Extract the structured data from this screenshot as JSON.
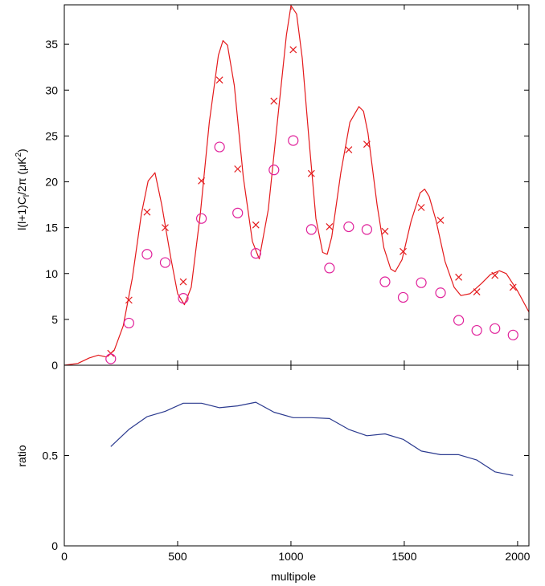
{
  "chart_data": [
    {
      "type": "line",
      "ylabel": "l(l+1)C_l/2π (μK²)",
      "ylabel_parts": {
        "a": "l(l+1)C",
        "sub": "l",
        "b": "/2π (μK",
        "sup": "2",
        "c": ")"
      },
      "xlim": [
        0,
        2050
      ],
      "ylim": [
        0,
        39.3
      ],
      "yticks": [
        0,
        5,
        10,
        15,
        20,
        25,
        30,
        35
      ],
      "grid": false,
      "series": [
        {
          "kind": "line",
          "color": "#e41a1c",
          "x": [
            0,
            60,
            110,
            150,
            185,
            220,
            260,
            300,
            340,
            370,
            400,
            430,
            470,
            500,
            530,
            560,
            600,
            640,
            680,
            700,
            720,
            750,
            790,
            830,
            860,
            900,
            940,
            980,
            1000,
            1025,
            1050,
            1080,
            1110,
            1140,
            1160,
            1180,
            1220,
            1260,
            1300,
            1320,
            1340,
            1380,
            1410,
            1440,
            1460,
            1490,
            1530,
            1570,
            1590,
            1610,
            1640,
            1680,
            1720,
            1750,
            1790,
            1840,
            1880,
            1920,
            1950,
            2000,
            2050
          ],
          "y": [
            0,
            0.2,
            0.8,
            1.1,
            0.9,
            1.6,
            4.3,
            9.5,
            16.5,
            20.1,
            21.0,
            17.5,
            11.7,
            7.8,
            6.6,
            8.5,
            16.5,
            26.5,
            33.8,
            35.4,
            34.9,
            30.5,
            20.5,
            13.5,
            11.6,
            17.0,
            26.5,
            36.0,
            39.2,
            38.3,
            33.5,
            24.5,
            16.0,
            12.3,
            12.1,
            14.0,
            21.0,
            26.5,
            28.2,
            27.7,
            25.3,
            17.5,
            12.8,
            10.5,
            10.2,
            11.5,
            15.7,
            18.8,
            19.2,
            18.4,
            15.8,
            11.3,
            8.5,
            7.6,
            7.8,
            8.9,
            9.9,
            10.3,
            10.0,
            8.1,
            5.8
          ]
        },
        {
          "kind": "x-markers",
          "color": "#e41a1c",
          "x": [
            205,
            285,
            365,
            445,
            525,
            605,
            685,
            765,
            845,
            925,
            1010,
            1090,
            1170,
            1255,
            1335,
            1415,
            1495,
            1575,
            1660,
            1740,
            1820,
            1900,
            1980
          ],
          "y": [
            1.3,
            7.1,
            16.7,
            15.0,
            9.1,
            20.1,
            31.1,
            21.4,
            15.3,
            28.8,
            34.4,
            20.9,
            15.1,
            23.5,
            24.1,
            14.6,
            12.4,
            17.2,
            15.8,
            9.6,
            8.0,
            9.8,
            8.5
          ]
        },
        {
          "kind": "circle-markers",
          "color": "#e0209a",
          "x": [
            205,
            285,
            365,
            445,
            525,
            605,
            685,
            765,
            845,
            925,
            1010,
            1090,
            1170,
            1255,
            1335,
            1415,
            1495,
            1575,
            1660,
            1740,
            1820,
            1900,
            1980
          ],
          "y": [
            0.7,
            4.6,
            12.1,
            11.2,
            7.3,
            16.0,
            23.8,
            16.6,
            12.2,
            21.3,
            24.5,
            14.8,
            10.6,
            15.1,
            14.8,
            9.1,
            7.4,
            9.0,
            7.9,
            4.9,
            3.8,
            4.0,
            3.3
          ]
        }
      ]
    },
    {
      "type": "line",
      "xlabel": "multipole",
      "ylabel": "ratio",
      "xlim": [
        0,
        2050
      ],
      "ylim": [
        0,
        1.0
      ],
      "yticks": [
        0,
        0.5
      ],
      "ytick_labels": [
        "0",
        "0.5"
      ],
      "xticks": [
        0,
        500,
        1000,
        1500,
        2000
      ],
      "xtick_labels": [
        "0",
        "500",
        "1000",
        "1500",
        "2000"
      ],
      "grid": false,
      "series": [
        {
          "kind": "line",
          "color": "#2b3a8f",
          "x": [
            205,
            285,
            365,
            445,
            525,
            605,
            685,
            765,
            845,
            925,
            1010,
            1090,
            1170,
            1255,
            1335,
            1415,
            1495,
            1575,
            1660,
            1740,
            1820,
            1900,
            1980
          ],
          "y": [
            0.55,
            0.645,
            0.715,
            0.745,
            0.79,
            0.79,
            0.765,
            0.775,
            0.795,
            0.74,
            0.71,
            0.71,
            0.705,
            0.645,
            0.61,
            0.62,
            0.59,
            0.525,
            0.505,
            0.505,
            0.475,
            0.41,
            0.39
          ]
        }
      ]
    }
  ]
}
